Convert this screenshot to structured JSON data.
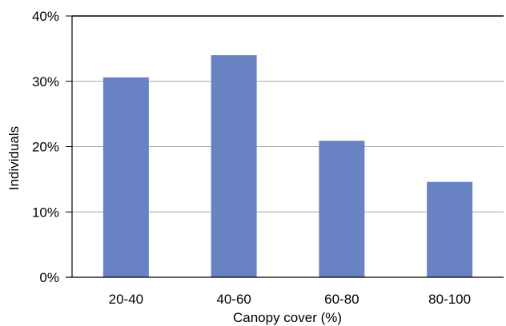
{
  "chart_data": {
    "type": "bar",
    "title": "",
    "xlabel": "Canopy cover (%)",
    "ylabel": "Individuals",
    "categories": [
      "20-40",
      "40-60",
      "60-80",
      "80-100"
    ],
    "values": [
      30.6,
      34.0,
      20.9,
      14.6
    ],
    "unit": "%",
    "ylim": [
      0,
      40
    ],
    "yticks": [
      0,
      10,
      20,
      30,
      40
    ],
    "ytick_labels": [
      "0%",
      "10%",
      "20%",
      "30%",
      "40%"
    ],
    "grid": true,
    "legend": "none",
    "colors": {
      "bar": "#6882C4",
      "grid": "#A6A6A6",
      "axis": "#000000"
    }
  }
}
